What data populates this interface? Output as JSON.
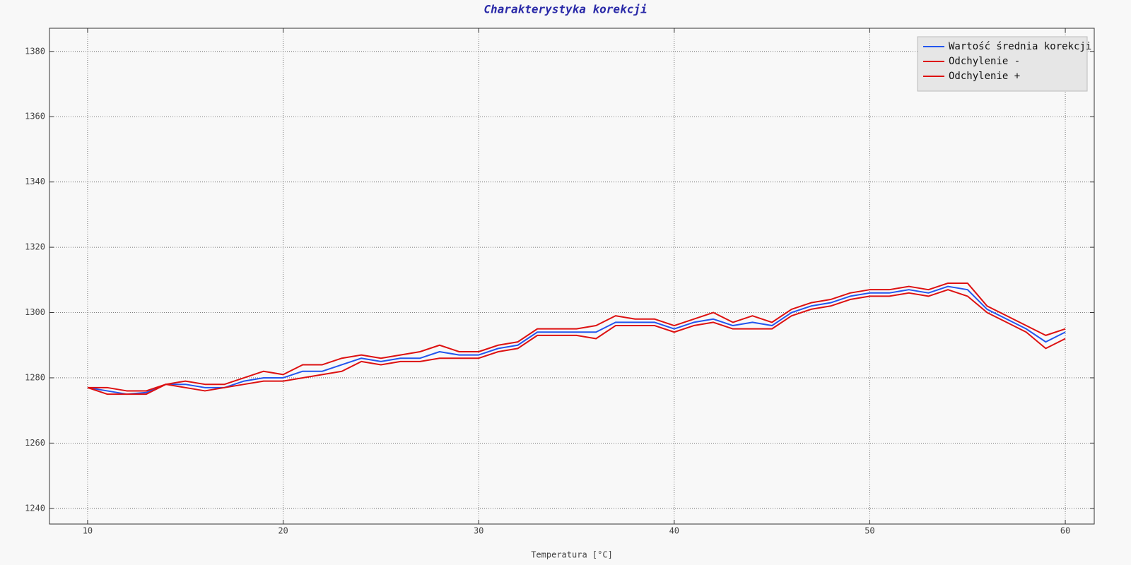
{
  "chart_data": {
    "type": "line",
    "title": "Charakterystyka korekcji",
    "x_label": "Temperatura [°C]",
    "x": [
      10,
      11,
      12,
      13,
      14,
      15,
      16,
      17,
      18,
      19,
      20,
      21,
      22,
      23,
      24,
      25,
      26,
      27,
      28,
      29,
      30,
      31,
      32,
      33,
      34,
      35,
      36,
      37,
      38,
      39,
      40,
      41,
      42,
      43,
      44,
      45,
      46,
      47,
      48,
      49,
      50,
      51,
      52,
      53,
      54,
      55,
      56,
      57,
      58,
      59,
      60
    ],
    "series": [
      {
        "name": "Wartość średnia korekcji",
        "color": "#2255ee",
        "values": [
          1277,
          1276,
          1275,
          1275.5,
          1278,
          1278,
          1277,
          1277,
          1279,
          1280,
          1280,
          1282,
          1282,
          1284,
          1286,
          1285,
          1286,
          1286,
          1288,
          1287,
          1287,
          1289,
          1290,
          1294,
          1294,
          1294,
          1294,
          1297,
          1297,
          1297,
          1295,
          1297,
          1298,
          1296,
          1297,
          1296,
          1300,
          1302,
          1303,
          1305,
          1306,
          1306,
          1307,
          1306,
          1308,
          1307,
          1301,
          1298,
          1295,
          1291,
          1294
        ]
      },
      {
        "name": "Odchylenie -",
        "color": "#dd1111",
        "values": [
          1277,
          1275,
          1275,
          1275,
          1278,
          1277,
          1276,
          1277,
          1278,
          1279,
          1279,
          1280,
          1281,
          1282,
          1285,
          1284,
          1285,
          1285,
          1286,
          1286,
          1286,
          1288,
          1289,
          1293,
          1293,
          1293,
          1292,
          1296,
          1296,
          1296,
          1294,
          1296,
          1297,
          1295,
          1295,
          1295,
          1299,
          1301,
          1302,
          1304,
          1305,
          1305,
          1306,
          1305,
          1307,
          1305,
          1300,
          1297,
          1294,
          1289,
          1292
        ]
      },
      {
        "name": "Odchylenie +",
        "color": "#dd1111",
        "values": [
          1277,
          1277,
          1276,
          1276,
          1278,
          1279,
          1278,
          1278,
          1280,
          1282,
          1281,
          1284,
          1284,
          1286,
          1287,
          1286,
          1287,
          1288,
          1290,
          1288,
          1288,
          1290,
          1291,
          1295,
          1295,
          1295,
          1296,
          1299,
          1298,
          1298,
          1296,
          1298,
          1300,
          1297,
          1299,
          1297,
          1301,
          1303,
          1304,
          1306,
          1307,
          1307,
          1308,
          1307,
          1309,
          1309,
          1302,
          1299,
          1296,
          1293,
          1295
        ]
      }
    ],
    "xlim": [
      8.05,
      61.48
    ],
    "ylim": [
      1235.2,
      1387.1
    ],
    "xticks": [
      10,
      20,
      30,
      40,
      50,
      60
    ],
    "yticks": [
      1240,
      1260,
      1280,
      1300,
      1320,
      1340,
      1360,
      1380
    ],
    "grid": true,
    "legend": "upper right"
  }
}
